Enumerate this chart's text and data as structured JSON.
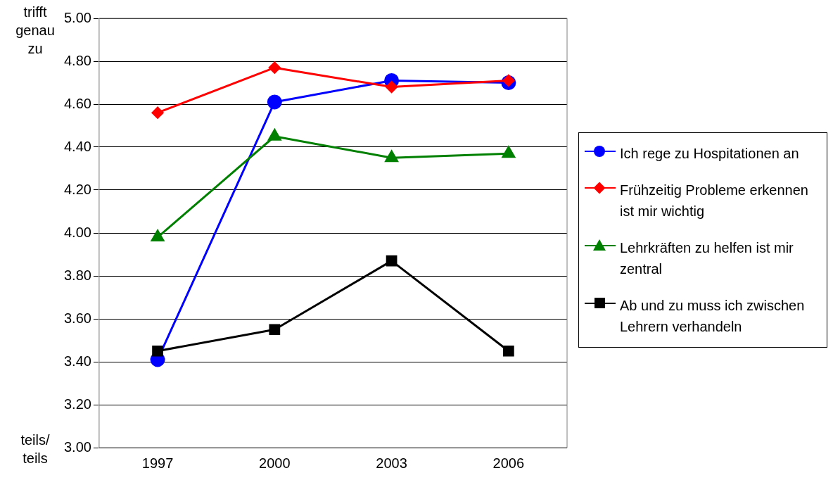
{
  "chart_data": {
    "type": "line",
    "categories": [
      "1997",
      "2000",
      "2003",
      "2006"
    ],
    "series": [
      {
        "name": "Ich rege zu Hospitationen an",
        "color": "#0000ff",
        "marker": "circle",
        "values": [
          3.41,
          4.61,
          4.71,
          4.7
        ]
      },
      {
        "name": "Frühzeitig Probleme erkennen ist mir wichtig",
        "color": "#ff0000",
        "marker": "diamond",
        "values": [
          4.56,
          4.77,
          4.68,
          4.71
        ]
      },
      {
        "name": "Lehrkräften zu helfen ist mir zentral",
        "color": "#008000",
        "marker": "triangle",
        "values": [
          3.98,
          4.45,
          4.35,
          4.37
        ]
      },
      {
        "name": "Ab und zu muss ich zwischen Lehrern verhandeln",
        "color": "#000000",
        "marker": "square",
        "values": [
          3.45,
          3.55,
          3.87,
          3.45
        ]
      }
    ],
    "ylim": [
      3,
      5
    ],
    "yticks": [
      {
        "value": 3,
        "label": "3.00"
      },
      {
        "value": 3.2,
        "label": "3.20"
      },
      {
        "value": 3.4,
        "label": "3.40"
      },
      {
        "value": 3.6,
        "label": "3.60"
      },
      {
        "value": 3.8,
        "label": "3.80"
      },
      {
        "value": 4,
        "label": "4.00"
      },
      {
        "value": 4.2,
        "label": "4.20"
      },
      {
        "value": 4.4,
        "label": "4.40"
      },
      {
        "value": 4.6,
        "label": "4.60"
      },
      {
        "value": 4.8,
        "label": "4.80"
      },
      {
        "value": 5,
        "label": "5.00"
      }
    ],
    "annotations": [
      "trifft genau zu",
      "teils/ teils"
    ],
    "grid": "y",
    "legend": "right",
    "line_style": "solid"
  }
}
